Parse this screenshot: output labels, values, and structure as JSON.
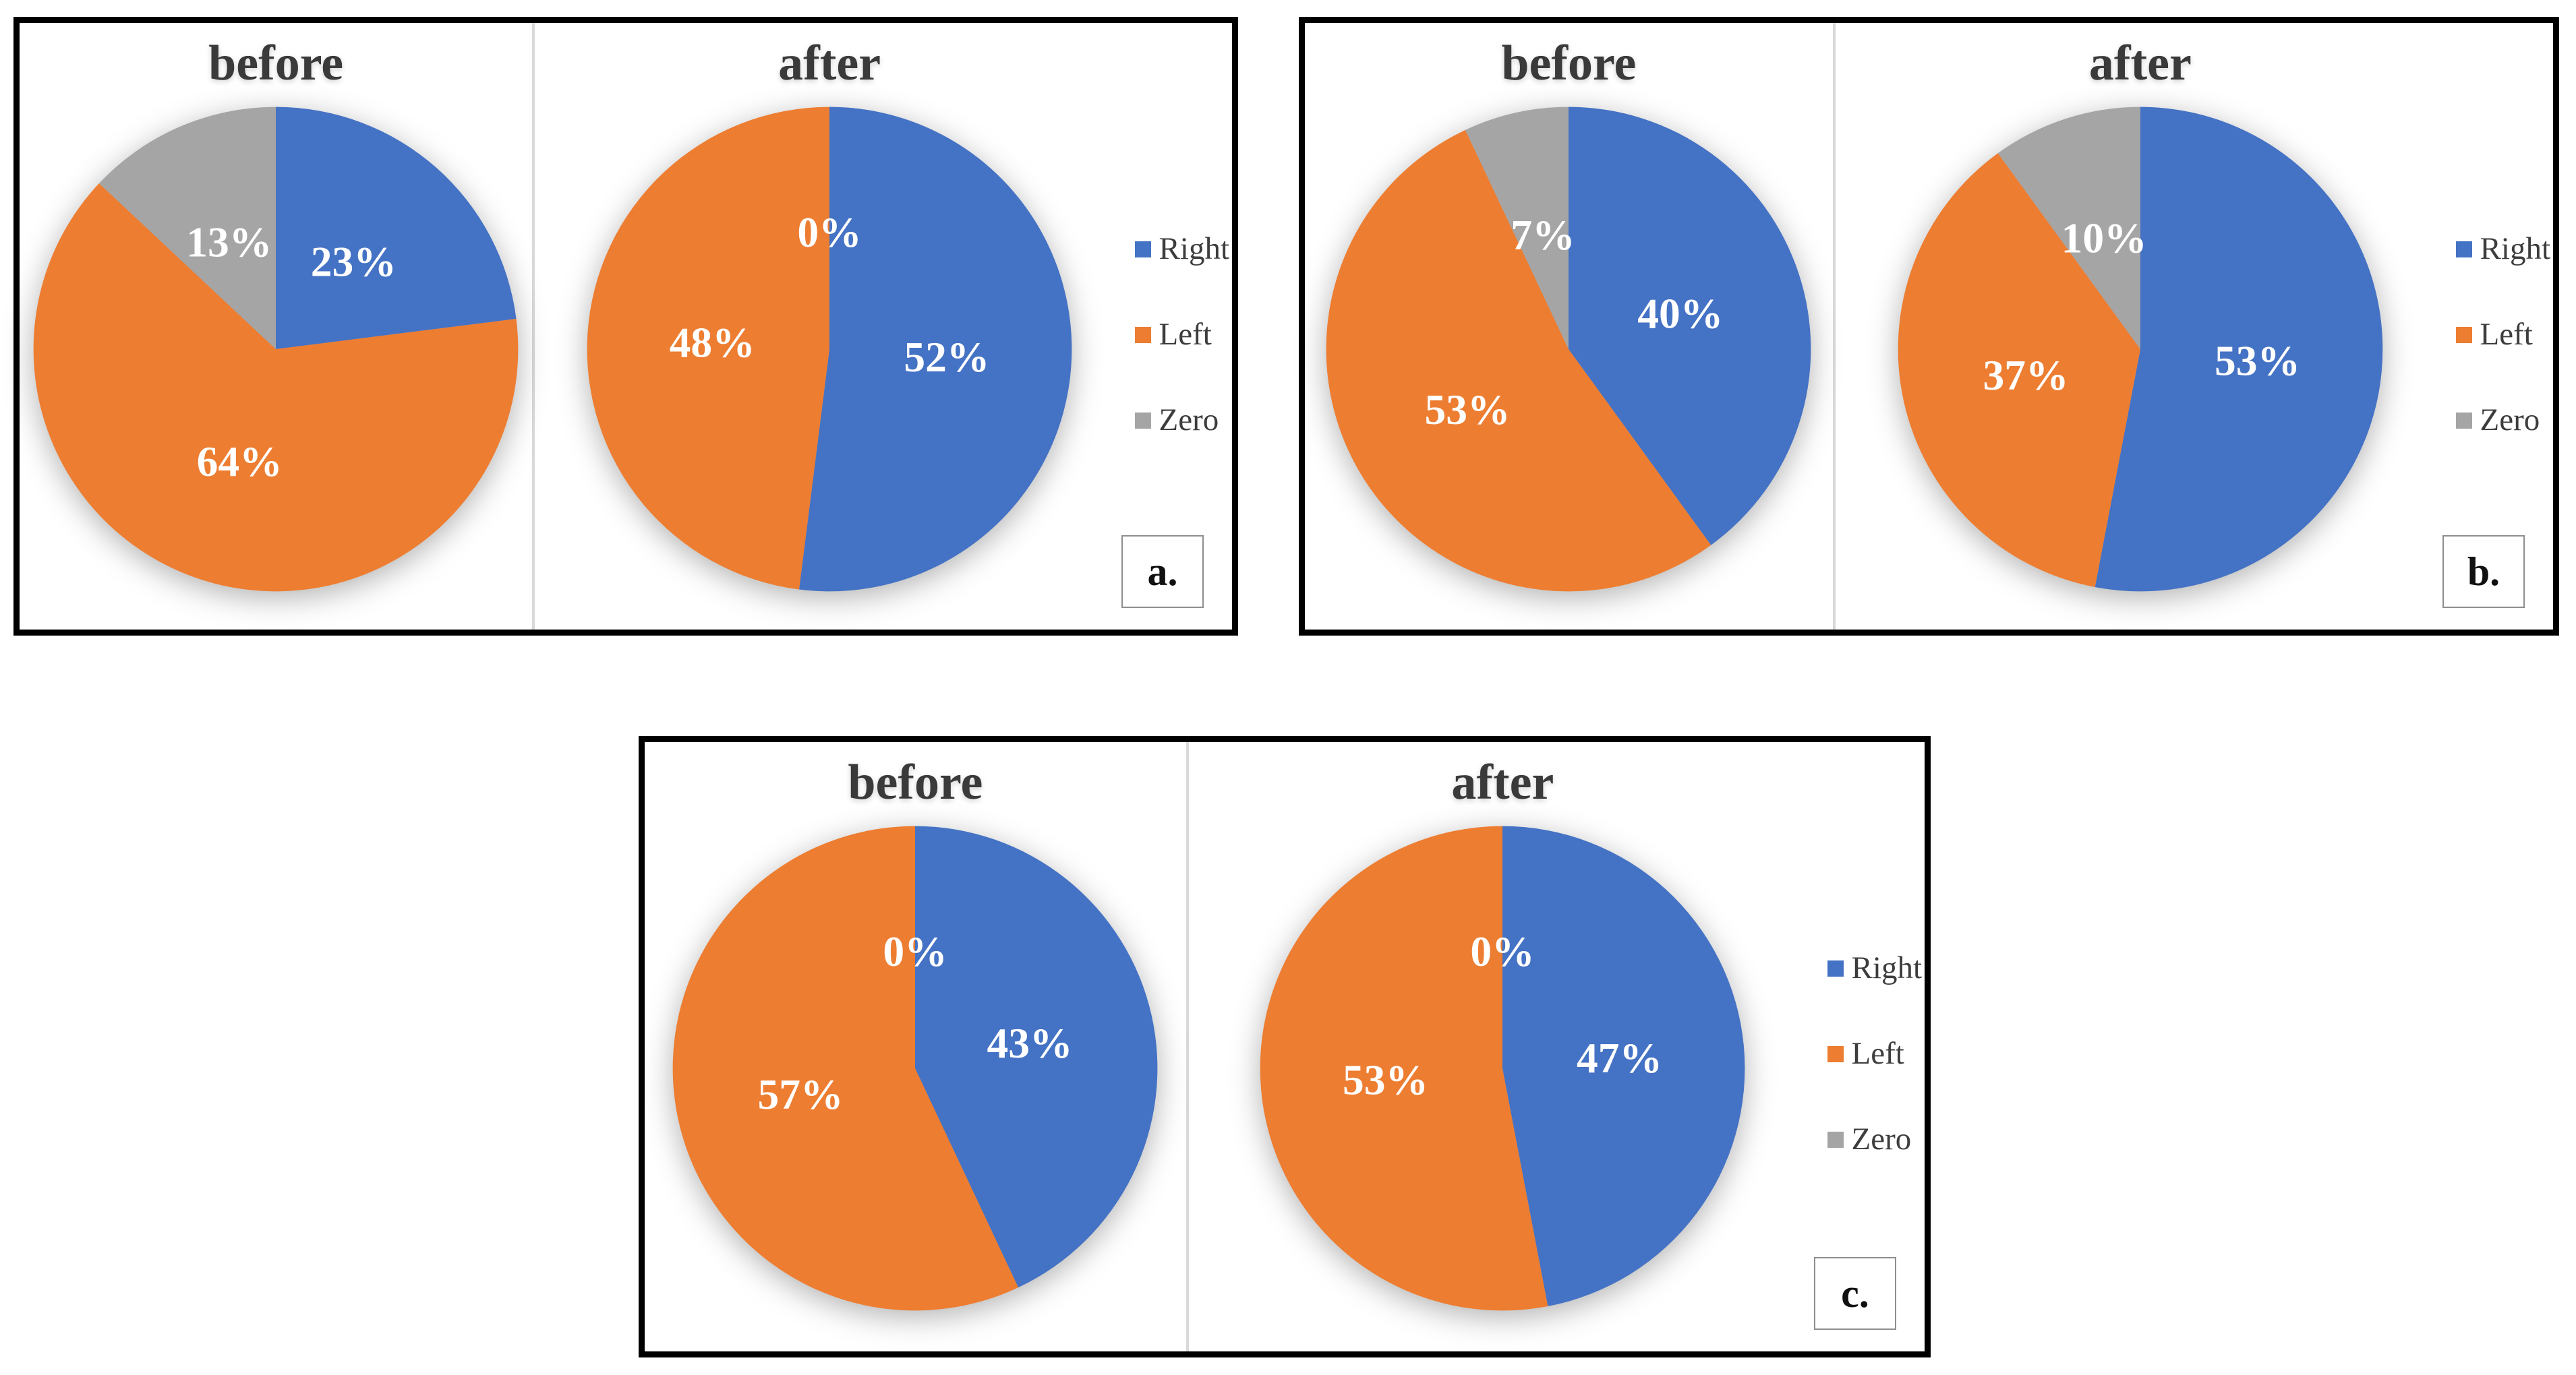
{
  "colors": {
    "right": "#4472C4",
    "left": "#ED7D31",
    "zero": "#A5A5A5",
    "pie_label_text": "#FFFFFF",
    "title_text": "#3A3A3A",
    "legend_text": "#3D3D3D",
    "panel_border": "#000000",
    "section_divider": "#D9D9D9",
    "tag_border": "#8E8E8E",
    "tag_text": "#111111"
  },
  "unit": "%",
  "legend": {
    "items": [
      {
        "label": "Right",
        "color_key": "right"
      },
      {
        "label": "Left",
        "color_key": "left"
      },
      {
        "label": "Zero",
        "color_key": "zero"
      }
    ]
  },
  "chart_data": [
    {
      "panel": "a.",
      "series_labels": [
        "Right",
        "Left",
        "Zero"
      ],
      "legend_position": "right",
      "charts": [
        {
          "type": "pie",
          "title": "before",
          "values": [
            23,
            64,
            13
          ]
        },
        {
          "type": "pie",
          "title": "after",
          "values": [
            52,
            48,
            0
          ]
        }
      ]
    },
    {
      "panel": "b.",
      "series_labels": [
        "Right",
        "Left",
        "Zero"
      ],
      "legend_position": "right",
      "charts": [
        {
          "type": "pie",
          "title": "before",
          "values": [
            40,
            53,
            7
          ]
        },
        {
          "type": "pie",
          "title": "after",
          "values": [
            53,
            37,
            10
          ]
        }
      ]
    },
    {
      "panel": "c.",
      "series_labels": [
        "Right",
        "Left",
        "Zero"
      ],
      "legend_position": "right",
      "charts": [
        {
          "type": "pie",
          "title": "before",
          "values": [
            43,
            57,
            0
          ]
        },
        {
          "type": "pie",
          "title": "after",
          "values": [
            47,
            53,
            0
          ]
        }
      ]
    }
  ]
}
